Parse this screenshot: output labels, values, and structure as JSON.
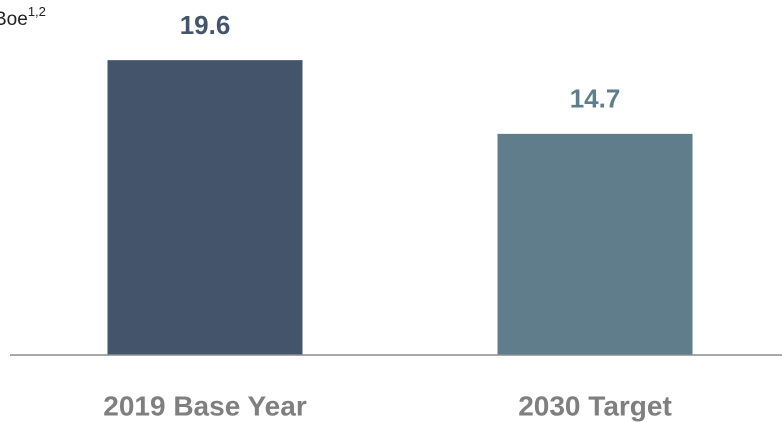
{
  "chart_data": {
    "type": "bar",
    "unit_label": "Boe",
    "unit_superscript": "1,2",
    "categories": [
      "2019 Base Year",
      "2030 Target"
    ],
    "values": [
      19.6,
      14.7
    ],
    "colors": [
      "#44546a",
      "#5f7d8a"
    ],
    "ylim": [
      0,
      23
    ]
  }
}
